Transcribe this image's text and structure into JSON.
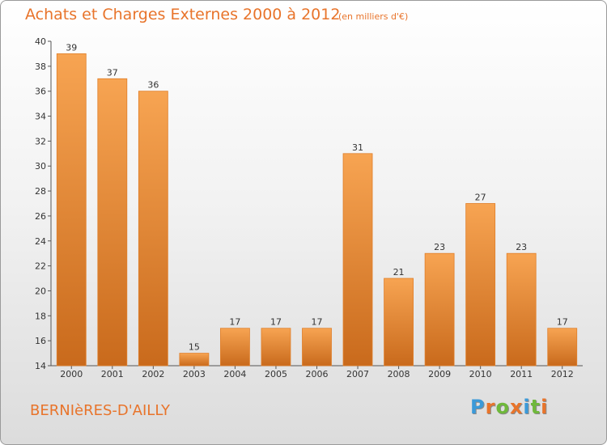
{
  "header": {
    "title": "Achats et Charges Externes 2000 à 2012",
    "unit": "(en milliers d'€)"
  },
  "footer": {
    "town": "BERNIèRES-D'AILLY",
    "logo_letters": [
      "P",
      "r",
      "o",
      "x",
      "i",
      "t",
      "i"
    ],
    "logo_colors": [
      "#3b9ad9",
      "#e8742b",
      "#6fb83b",
      "#e8742b",
      "#3b9ad9",
      "#6fb83b",
      "#e8742b"
    ]
  },
  "chart_data": {
    "type": "bar",
    "title": "Achats et Charges Externes 2000 à 2012",
    "subtitle": "(en milliers d'€)",
    "categories": [
      "2000",
      "2001",
      "2002",
      "2003",
      "2004",
      "2005",
      "2006",
      "2007",
      "2008",
      "2009",
      "2010",
      "2011",
      "2012"
    ],
    "values": [
      39,
      37,
      36,
      15,
      17,
      17,
      17,
      31,
      21,
      23,
      27,
      23,
      17
    ],
    "ylim": [
      14,
      40
    ],
    "yticks": [
      14,
      16,
      18,
      20,
      22,
      24,
      26,
      28,
      30,
      32,
      34,
      36,
      38,
      40
    ],
    "grid": false,
    "bar_color": "#f0913a",
    "bar_color_dark": "#c96a1c"
  }
}
